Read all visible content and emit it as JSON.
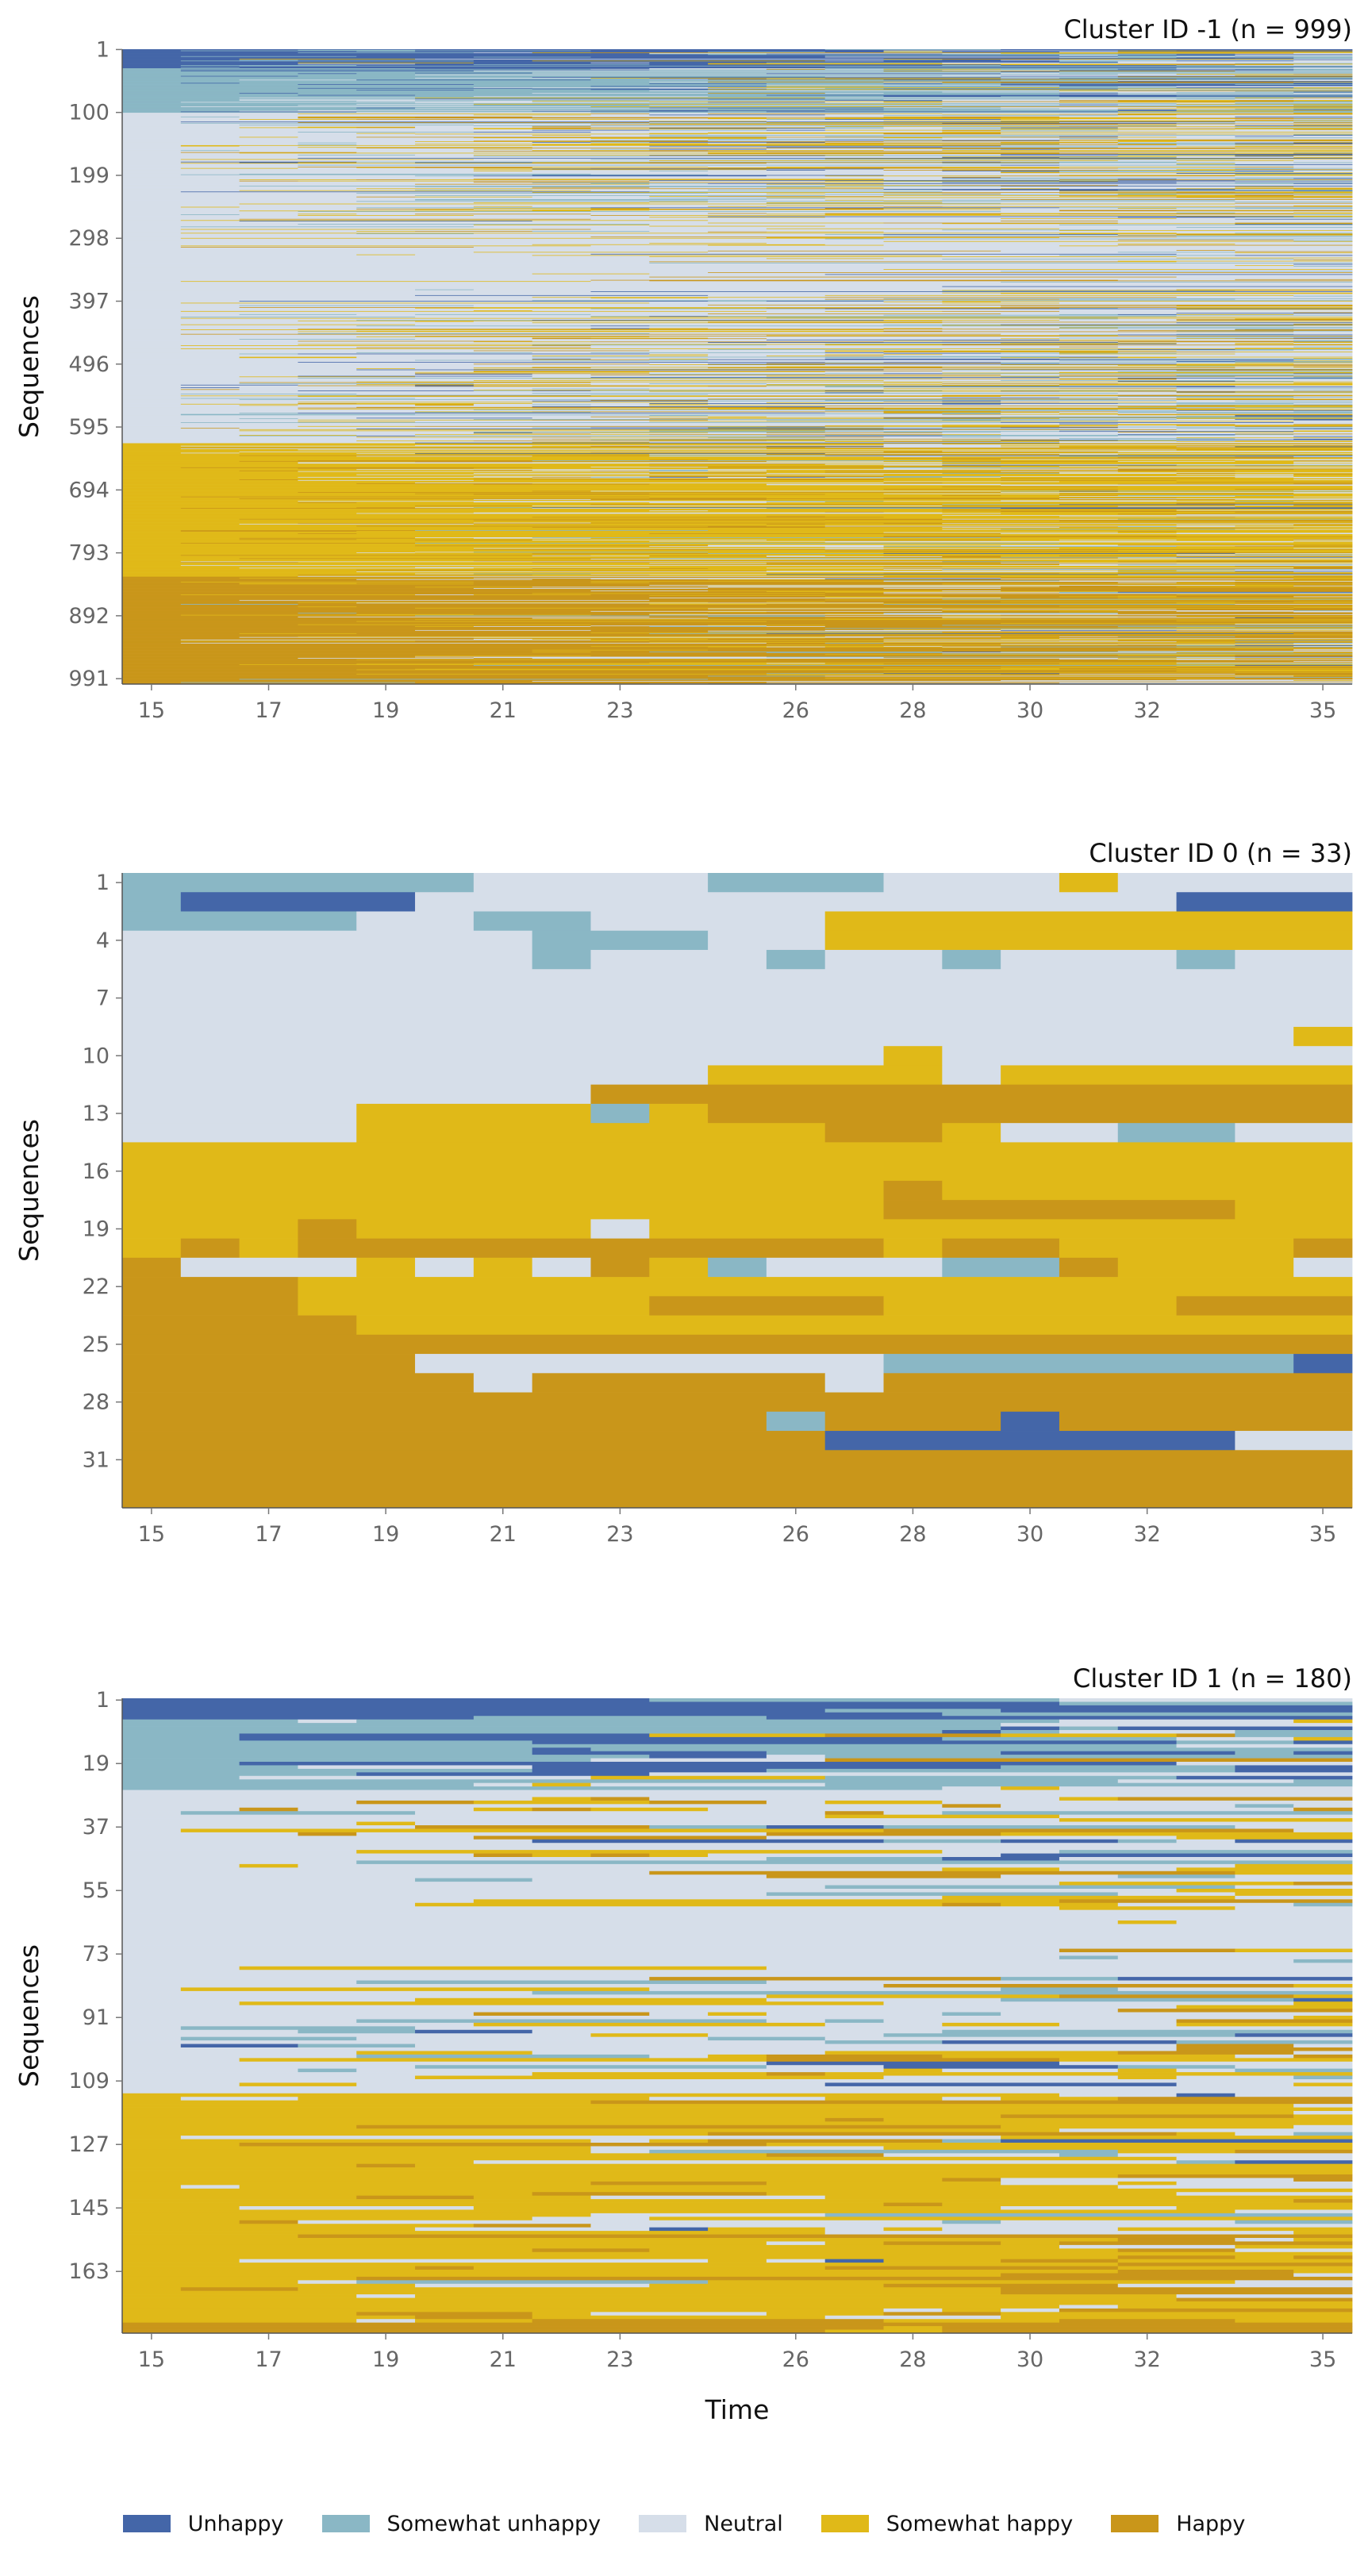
{
  "chart_data": {
    "type": "heatmap",
    "subtype": "sequence index plot",
    "legend": {
      "placement": "bottom",
      "items": [
        {
          "state": 0,
          "label": "Unhappy",
          "color": "#4466a8"
        },
        {
          "state": 1,
          "label": "Somewhat unhappy",
          "color": "#8ab7c5"
        },
        {
          "state": 2,
          "label": "Neutral",
          "color": "#d6dee9"
        },
        {
          "state": 3,
          "label": "Somewhat happy",
          "color": "#e0b918"
        },
        {
          "state": 4,
          "label": "Happy",
          "color": "#c9961a"
        }
      ]
    },
    "x_ticks": [
      15,
      17,
      19,
      21,
      23,
      26,
      28,
      30,
      32,
      35
    ],
    "time_points": [
      15,
      16,
      17,
      18,
      19,
      20,
      21,
      22,
      23,
      24,
      25,
      26,
      27,
      28,
      29,
      30,
      31,
      32,
      33,
      34,
      35
    ],
    "xlabel": "Time",
    "ylabel": "Sequences",
    "panels": [
      {
        "title": "Cluster ID -1 (n = 999)",
        "n": 999,
        "y_ticks": [
          1,
          100,
          199,
          298,
          397,
          496,
          595,
          694,
          793,
          892,
          991
        ],
        "composition": "sequences sorted by starting state; rows 1-30 start Unhappy, 31-100 Somewhat unhappy, 101-620 Neutral, 621-830 Somewhat happy, 831-999 Happy; states diversify over time"
      },
      {
        "title": "Cluster ID 0 (n = 33)",
        "n": 33,
        "y_ticks": [
          1,
          4,
          7,
          10,
          13,
          16,
          19,
          22,
          25,
          28,
          31
        ],
        "sequences": [
          [
            1,
            1,
            1,
            1,
            1,
            1,
            2,
            2,
            2,
            2,
            1,
            1,
            1,
            2,
            2,
            2,
            3,
            2,
            2,
            2,
            2
          ],
          [
            1,
            0,
            0,
            0,
            0,
            2,
            2,
            2,
            2,
            2,
            2,
            2,
            2,
            2,
            2,
            2,
            2,
            2,
            0,
            0,
            0
          ],
          [
            1,
            1,
            1,
            1,
            2,
            2,
            1,
            1,
            2,
            2,
            2,
            2,
            3,
            3,
            3,
            3,
            3,
            3,
            3,
            3,
            3
          ],
          [
            2,
            2,
            2,
            2,
            2,
            2,
            2,
            1,
            1,
            1,
            2,
            2,
            3,
            3,
            3,
            3,
            3,
            3,
            3,
            3,
            3
          ],
          [
            2,
            2,
            2,
            2,
            2,
            2,
            2,
            1,
            2,
            2,
            2,
            1,
            2,
            2,
            1,
            2,
            2,
            2,
            1,
            2,
            2
          ],
          [
            2,
            2,
            2,
            2,
            2,
            2,
            2,
            2,
            2,
            2,
            2,
            2,
            2,
            2,
            2,
            2,
            2,
            2,
            2,
            2,
            2
          ],
          [
            2,
            2,
            2,
            2,
            2,
            2,
            2,
            2,
            2,
            2,
            2,
            2,
            2,
            2,
            2,
            2,
            2,
            2,
            2,
            2,
            2
          ],
          [
            2,
            2,
            2,
            2,
            2,
            2,
            2,
            2,
            2,
            2,
            2,
            2,
            2,
            2,
            2,
            2,
            2,
            2,
            2,
            2,
            2
          ],
          [
            2,
            2,
            2,
            2,
            2,
            2,
            2,
            2,
            2,
            2,
            2,
            2,
            2,
            2,
            2,
            2,
            2,
            2,
            2,
            2,
            3
          ],
          [
            2,
            2,
            2,
            2,
            2,
            2,
            2,
            2,
            2,
            2,
            2,
            2,
            2,
            3,
            2,
            2,
            2,
            2,
            2,
            2,
            2
          ],
          [
            2,
            2,
            2,
            2,
            2,
            2,
            2,
            2,
            2,
            2,
            3,
            3,
            3,
            3,
            2,
            3,
            3,
            3,
            3,
            3,
            3
          ],
          [
            2,
            2,
            2,
            2,
            2,
            2,
            2,
            2,
            4,
            4,
            4,
            4,
            4,
            4,
            4,
            4,
            4,
            4,
            4,
            4,
            4
          ],
          [
            2,
            2,
            2,
            2,
            3,
            3,
            3,
            3,
            1,
            3,
            4,
            4,
            4,
            4,
            4,
            4,
            4,
            4,
            4,
            4,
            4
          ],
          [
            2,
            2,
            2,
            2,
            3,
            3,
            3,
            3,
            3,
            3,
            3,
            3,
            4,
            4,
            3,
            2,
            2,
            1,
            1,
            2,
            2
          ],
          [
            3,
            3,
            3,
            3,
            3,
            3,
            3,
            3,
            3,
            3,
            3,
            3,
            3,
            3,
            3,
            3,
            3,
            3,
            3,
            3,
            3
          ],
          [
            3,
            3,
            3,
            3,
            3,
            3,
            3,
            3,
            3,
            3,
            3,
            3,
            3,
            3,
            3,
            3,
            3,
            3,
            3,
            3,
            3
          ],
          [
            3,
            3,
            3,
            3,
            3,
            3,
            3,
            3,
            3,
            3,
            3,
            3,
            3,
            4,
            3,
            3,
            3,
            3,
            3,
            3,
            3
          ],
          [
            3,
            3,
            3,
            3,
            3,
            3,
            3,
            3,
            3,
            3,
            3,
            3,
            3,
            4,
            4,
            4,
            4,
            4,
            4,
            3,
            3
          ],
          [
            3,
            3,
            3,
            4,
            3,
            3,
            3,
            3,
            2,
            3,
            3,
            3,
            3,
            3,
            3,
            3,
            3,
            3,
            3,
            3,
            3
          ],
          [
            3,
            4,
            3,
            4,
            4,
            4,
            4,
            4,
            4,
            4,
            4,
            4,
            4,
            3,
            4,
            4,
            3,
            3,
            3,
            3,
            4
          ],
          [
            4,
            2,
            2,
            2,
            3,
            2,
            3,
            2,
            4,
            3,
            1,
            2,
            2,
            2,
            1,
            1,
            4,
            3,
            3,
            3,
            2
          ],
          [
            4,
            4,
            4,
            3,
            3,
            3,
            3,
            3,
            3,
            3,
            3,
            3,
            3,
            3,
            3,
            3,
            3,
            3,
            3,
            3,
            3
          ],
          [
            4,
            4,
            4,
            3,
            3,
            3,
            3,
            3,
            3,
            4,
            4,
            4,
            4,
            3,
            3,
            3,
            3,
            3,
            4,
            4,
            4
          ],
          [
            4,
            4,
            4,
            4,
            3,
            3,
            3,
            3,
            3,
            3,
            3,
            3,
            3,
            3,
            3,
            3,
            3,
            3,
            3,
            3,
            3
          ],
          [
            4,
            4,
            4,
            4,
            4,
            4,
            4,
            4,
            4,
            4,
            4,
            4,
            4,
            4,
            4,
            4,
            4,
            4,
            4,
            4,
            4
          ],
          [
            4,
            4,
            4,
            4,
            4,
            2,
            2,
            2,
            2,
            2,
            2,
            2,
            2,
            1,
            1,
            1,
            1,
            1,
            1,
            1,
            0
          ],
          [
            4,
            4,
            4,
            4,
            4,
            4,
            2,
            4,
            4,
            4,
            4,
            4,
            2,
            4,
            4,
            4,
            4,
            4,
            4,
            4,
            4
          ],
          [
            4,
            4,
            4,
            4,
            4,
            4,
            4,
            4,
            4,
            4,
            4,
            4,
            4,
            4,
            4,
            4,
            4,
            4,
            4,
            4,
            4
          ],
          [
            4,
            4,
            4,
            4,
            4,
            4,
            4,
            4,
            4,
            4,
            4,
            1,
            4,
            4,
            4,
            0,
            4,
            4,
            4,
            4,
            4
          ],
          [
            4,
            4,
            4,
            4,
            4,
            4,
            4,
            4,
            4,
            4,
            4,
            4,
            0,
            0,
            0,
            0,
            0,
            0,
            0,
            2,
            2
          ],
          [
            4,
            4,
            4,
            4,
            4,
            4,
            4,
            4,
            4,
            4,
            4,
            4,
            4,
            4,
            4,
            4,
            4,
            4,
            4,
            4,
            4
          ],
          [
            4,
            4,
            4,
            4,
            4,
            4,
            4,
            4,
            4,
            4,
            4,
            4,
            4,
            4,
            4,
            4,
            4,
            4,
            4,
            4,
            4
          ],
          [
            4,
            4,
            4,
            4,
            4,
            4,
            4,
            4,
            4,
            4,
            4,
            4,
            4,
            4,
            4,
            4,
            4,
            4,
            4,
            4,
            4
          ]
        ]
      },
      {
        "title": "Cluster ID 1 (n = 180)",
        "n": 180,
        "y_ticks": [
          1,
          19,
          37,
          55,
          73,
          91,
          109,
          127,
          145,
          163
        ],
        "composition": "sequences sorted by starting state; rows 1-6 start Unhappy, 7-26 Somewhat unhappy, 27-112 Neutral, 113-177 Somewhat happy, 178-180 Happy; states diversify over time"
      }
    ]
  }
}
